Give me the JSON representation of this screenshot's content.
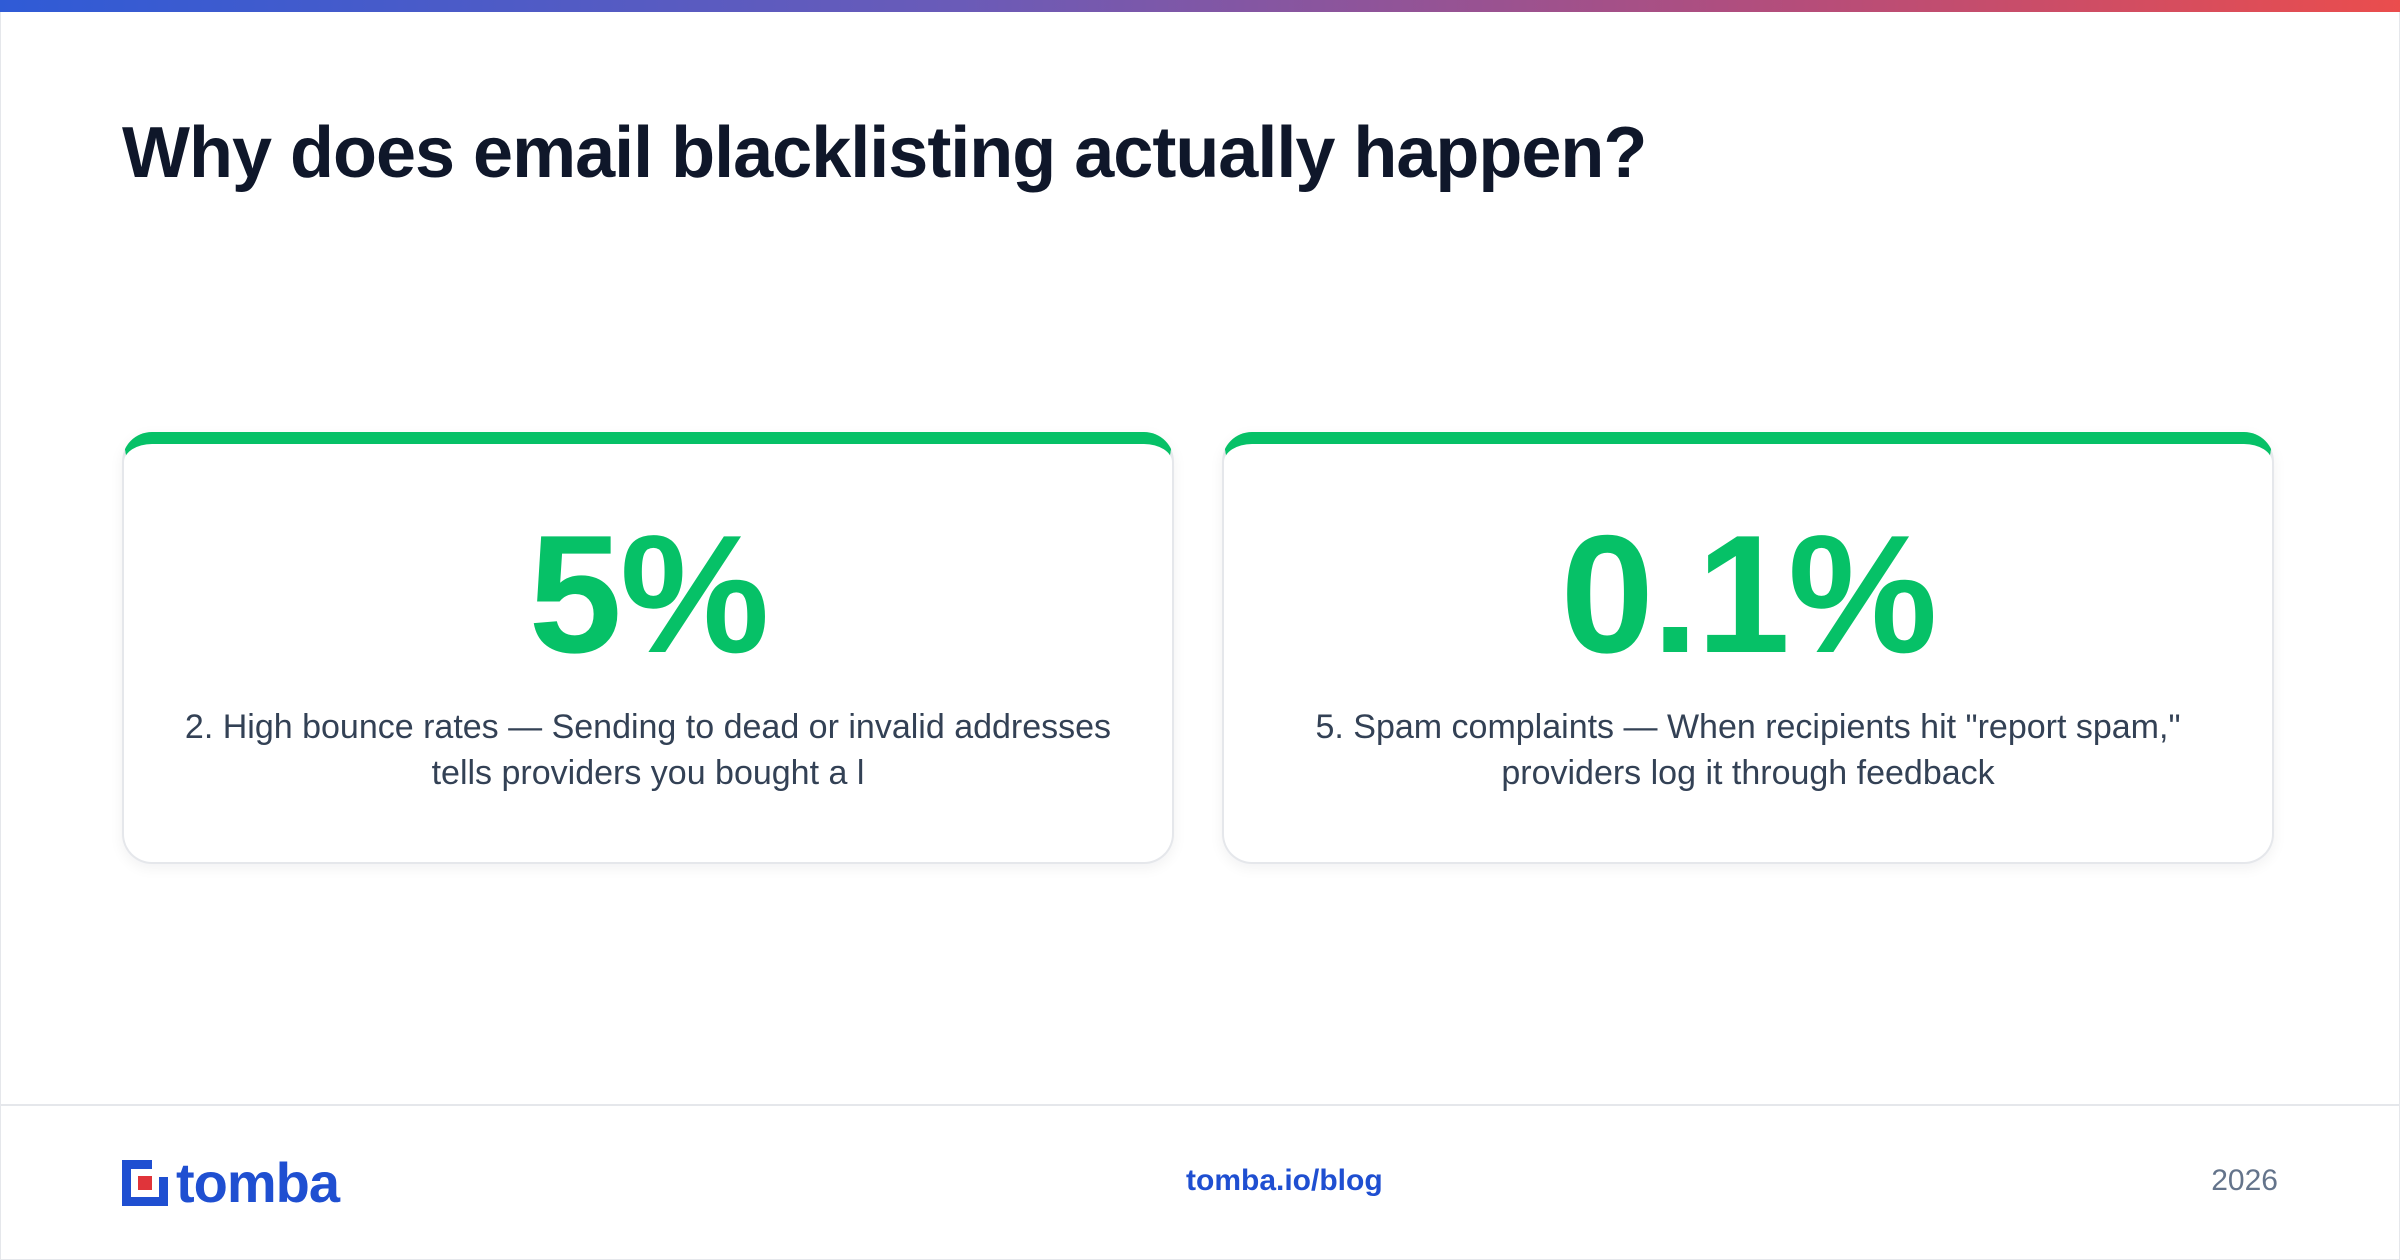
{
  "header": {
    "title": "Why does email blacklisting actually happen?"
  },
  "cards": [
    {
      "stat": "5%",
      "description": "2. High bounce rates — Sending to dead or invalid addresses tells providers you bought a l"
    },
    {
      "stat": "0.1%",
      "description": "5. Spam complaints — When recipients hit \"report spam,\" providers log it through feedback"
    }
  ],
  "footer": {
    "logo_text": "tomba",
    "link": "tomba.io/blog",
    "year": "2026"
  },
  "colors": {
    "accent": "#06c167",
    "brand": "#1f4fd1",
    "title": "#0f172a",
    "gradient_start": "#2f5bd6",
    "gradient_end": "#ea4d4d"
  }
}
